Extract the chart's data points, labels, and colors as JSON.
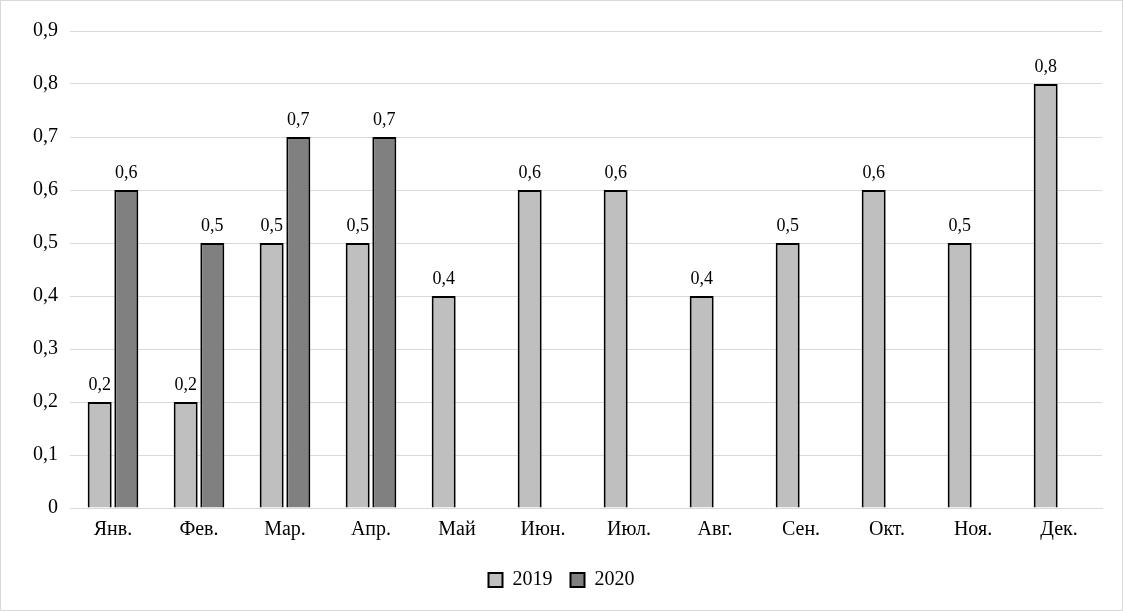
{
  "chart_data": {
    "type": "bar",
    "categories": [
      "Янв.",
      "Фев.",
      "Мар.",
      "Апр.",
      "Май",
      "Июн.",
      "Июл.",
      "Авг.",
      "Сен.",
      "Окт.",
      "Ноя.",
      "Дек."
    ],
    "series": [
      {
        "name": "2019",
        "color": "#bfbfbf",
        "values": [
          0.2,
          0.2,
          0.5,
          0.5,
          0.4,
          0.6,
          0.6,
          0.4,
          0.5,
          0.6,
          0.5,
          0.8
        ],
        "value_labels": [
          "0,2",
          "0,2",
          "0,5",
          "0,5",
          "0,4",
          "0,6",
          "0,6",
          "0,4",
          "0,5",
          "0,6",
          "0,5",
          "0,8"
        ]
      },
      {
        "name": "2020",
        "color": "#808080",
        "values": [
          0.6,
          0.5,
          0.7,
          0.7,
          null,
          null,
          null,
          null,
          null,
          null,
          null,
          null
        ],
        "value_labels": [
          "0,6",
          "0,5",
          "0,7",
          "0,7",
          null,
          null,
          null,
          null,
          null,
          null,
          null,
          null
        ]
      }
    ],
    "ylim": [
      0,
      0.9
    ],
    "yticks": [
      {
        "value": 0,
        "label": "0"
      },
      {
        "value": 0.1,
        "label": "0,1"
      },
      {
        "value": 0.2,
        "label": "0,2"
      },
      {
        "value": 0.3,
        "label": "0,3"
      },
      {
        "value": 0.4,
        "label": "0,4"
      },
      {
        "value": 0.5,
        "label": "0,5"
      },
      {
        "value": 0.6,
        "label": "0,6"
      },
      {
        "value": 0.7,
        "label": "0,7"
      },
      {
        "value": 0.8,
        "label": "0,8"
      },
      {
        "value": 0.9,
        "label": "0,9"
      }
    ],
    "grid": "y",
    "legend": "bottom"
  }
}
